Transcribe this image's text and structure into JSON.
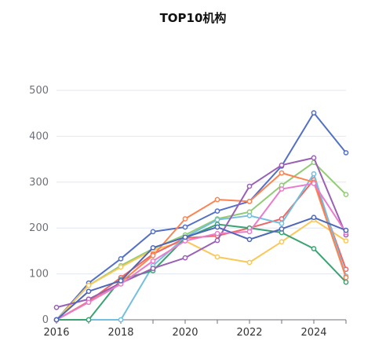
{
  "chart_data": {
    "type": "line",
    "title": "TOP10机构",
    "x": [
      2016,
      2017,
      2018,
      2019,
      2020,
      2021,
      2022,
      2023,
      2024,
      2025
    ],
    "x_tick_labels": [
      "2016",
      "2018",
      "2020",
      "2022",
      "2024"
    ],
    "y_tick_labels": [
      "0",
      "100",
      "200",
      "300",
      "400",
      "500"
    ],
    "ylim": [
      0,
      500
    ],
    "xlim": [
      2016,
      2025
    ],
    "grid": true,
    "series": [
      {
        "color": "#5470c6",
        "values": [
          0,
          80,
          133,
          192,
          202,
          237,
          258,
          335,
          451,
          364
        ]
      },
      {
        "color": "#91cc75",
        "values": [
          0,
          75,
          118,
          155,
          185,
          220,
          235,
          293,
          343,
          273
        ]
      },
      {
        "color": "#fac858",
        "values": [
          0,
          75,
          115,
          152,
          172,
          137,
          125,
          170,
          218,
          172
        ]
      },
      {
        "color": "#ee6666",
        "values": [
          0,
          40,
          92,
          143,
          178,
          183,
          200,
          220,
          305,
          110
        ]
      },
      {
        "color": "#73c0de",
        "values": [
          0,
          0,
          0,
          118,
          180,
          218,
          227,
          210,
          318,
          95
        ]
      },
      {
        "color": "#3ba272",
        "values": [
          0,
          0,
          88,
          107,
          178,
          208,
          200,
          190,
          155,
          82
        ]
      },
      {
        "color": "#fc8452",
        "values": [
          0,
          38,
          82,
          140,
          220,
          262,
          258,
          320,
          300,
          92
        ]
      },
      {
        "color": "#9a60b4",
        "values": [
          27,
          45,
          80,
          112,
          135,
          173,
          291,
          337,
          353,
          185
        ]
      },
      {
        "color": "#ea7ccc",
        "values": [
          0,
          38,
          78,
          128,
          172,
          188,
          192,
          285,
          297,
          190
        ]
      },
      {
        "color": "#4d67b9",
        "values": [
          0,
          62,
          85,
          157,
          180,
          202,
          175,
          198,
          223,
          195
        ]
      }
    ]
  }
}
